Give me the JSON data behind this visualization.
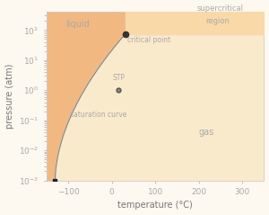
{
  "xlabel": "temperature (°C)",
  "ylabel": "pressure (atm)",
  "xlim": [
    -150,
    350
  ],
  "ylim_log": [
    -3,
    2.6
  ],
  "bg_color": "#fdf8f0",
  "liquid_color": "#f2b882",
  "gas_color": "#faeacc",
  "supercritical_color": "#f9d9a8",
  "curve_color": "#888888",
  "critical_T": 31,
  "critical_P": 73,
  "triple_T": -130,
  "triple_P": 0.001,
  "stp_T": 15,
  "stp_P": 1,
  "label_color": "#aaaaaa",
  "tick_color": "#aaaaaa",
  "spine_color": "#cccccc"
}
